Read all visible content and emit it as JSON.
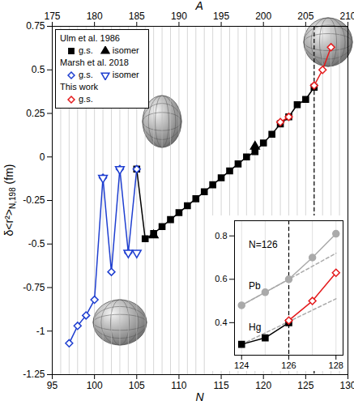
{
  "chart_data": [
    {
      "type": "scatter",
      "xlabel": "N",
      "x2label": "A",
      "ylabel": [
        "δ<r²>",
        "N,198",
        " (fm)"
      ],
      "xlim": [
        95,
        130
      ],
      "xticks": [
        95,
        100,
        105,
        110,
        115,
        120,
        125,
        130
      ],
      "x2lim": [
        175,
        210
      ],
      "x2ticks": [
        175,
        180,
        185,
        190,
        195,
        200,
        205,
        210
      ],
      "ylim": [
        -1.25,
        0.75
      ],
      "yticks": [
        -1.25,
        -1,
        -0.75,
        -0.5,
        -0.25,
        0,
        0.25,
        0.5,
        0.75
      ],
      "grid": true,
      "legend": "top-left",
      "vline": 126,
      "series": [
        {
          "group": "Ulm et al. 1986",
          "name": "g.s.",
          "color": "#000000",
          "marker": "square",
          "line_style": "solid",
          "x": [
            105,
            106,
            107,
            108,
            109,
            110,
            111,
            112,
            113,
            114,
            115,
            116,
            117,
            118,
            119,
            120,
            121,
            122,
            123,
            124,
            125,
            126
          ],
          "values": [
            -0.07,
            -0.47,
            -0.44,
            -0.4,
            -0.36,
            -0.32,
            -0.28,
            -0.24,
            -0.2,
            -0.16,
            -0.12,
            -0.08,
            -0.04,
            0,
            0.03,
            0.08,
            0.13,
            0.19,
            0.23,
            0.3,
            0.33,
            0.4
          ]
        },
        {
          "group": "Ulm et al. 1986",
          "name": "isomer",
          "color": "#000000",
          "marker": "triangle",
          "line_style": "none",
          "x": [
            107,
            119
          ],
          "values": [
            -0.45,
            0.06
          ]
        },
        {
          "group": "Marsh et al. 2018",
          "name": "g.s.",
          "color": "#1f3fd0",
          "marker": "diamond-open",
          "line_style": "solid",
          "x": [
            97,
            98,
            99,
            100,
            101,
            102,
            103,
            104,
            105
          ],
          "values": [
            -1.07,
            -0.97,
            -0.91,
            -0.82,
            -0.12,
            -0.66,
            -0.07,
            -0.55,
            -0.07
          ]
        },
        {
          "group": "Marsh et al. 2018",
          "name": "isomer",
          "color": "#1f3fd0",
          "marker": "triangle-down-open",
          "line_style": "none",
          "x": [
            101,
            103,
            104,
            105
          ],
          "values": [
            -0.12,
            -0.07,
            -0.55,
            -0.55
          ]
        },
        {
          "group": "This work",
          "name": "g.s.",
          "color": "#e41a1c",
          "marker": "diamond-open",
          "line_style": "solid",
          "x": [
            122,
            123,
            124,
            125,
            126,
            127,
            128
          ],
          "values": [
            0.2,
            0.23,
            null,
            null,
            0.41,
            0.5,
            0.63
          ]
        }
      ]
    },
    {
      "type": "scatter",
      "xlim": [
        123.7,
        128.3
      ],
      "xticks": [
        124,
        126,
        128
      ],
      "ylim": [
        0.25,
        0.87
      ],
      "yticks": [
        0.4,
        0.6,
        0.8
      ],
      "grid": true,
      "vline": 126,
      "series": [
        {
          "color": "#aaaaaa",
          "marker": "circle",
          "line_style": "solid",
          "x": [
            124,
            125,
            126,
            127,
            128
          ],
          "values": [
            0.48,
            0.54,
            0.6,
            0.7,
            0.81
          ]
        },
        {
          "color": "#aaaaaa",
          "marker": "none",
          "line_style": "dashed",
          "x": [
            124,
            128
          ],
          "values": [
            0.48,
            0.72
          ]
        },
        {
          "color": "#aaaaaa",
          "marker": "none",
          "line_style": "dashed",
          "x": [
            124,
            128
          ],
          "values": [
            0.3,
            0.51
          ]
        },
        {
          "color": "#000000",
          "marker": "square",
          "line_style": "solid",
          "x": [
            124,
            125,
            126
          ],
          "values": [
            0.3,
            0.33,
            0.4
          ]
        },
        {
          "color": "#e41a1c",
          "marker": "diamond-open",
          "line_style": "solid",
          "x": [
            126,
            127,
            128
          ],
          "values": [
            0.41,
            0.5,
            0.63
          ]
        }
      ],
      "annotations": [
        {
          "text": "N=126",
          "x": 124.3,
          "y": 0.76
        },
        {
          "text": "Pb",
          "x": 124.3,
          "y": 0.57
        },
        {
          "text": "Hg",
          "x": 124.3,
          "y": 0.38
        }
      ]
    }
  ]
}
